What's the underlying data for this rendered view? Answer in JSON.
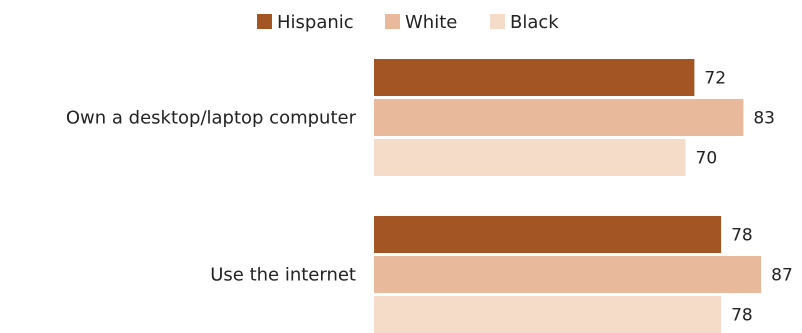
{
  "chart_data": {
    "type": "bar",
    "orientation": "horizontal",
    "categories": [
      "Own a desktop/laptop computer",
      "Use the internet"
    ],
    "series": [
      {
        "name": "Hispanic",
        "values": [
          72,
          78
        ],
        "color": "#a35623"
      },
      {
        "name": "White",
        "values": [
          83,
          87
        ],
        "color": "#e8b99a"
      },
      {
        "name": "Black",
        "values": [
          70,
          78
        ],
        "color": "#f5dcc9"
      }
    ],
    "xlim": [
      0,
      100
    ],
    "grid": false,
    "legend_position": "top-center",
    "data_labels": true
  }
}
